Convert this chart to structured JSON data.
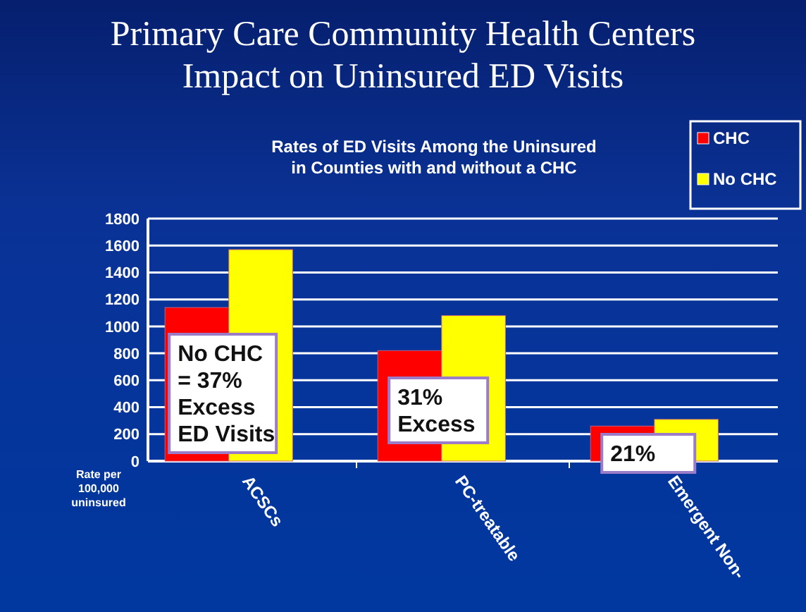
{
  "chart_data": {
    "type": "bar",
    "title": "Primary Care Community Health Centers\nImpact on Uninsured ED Visits",
    "subtitle": "Rates of ED Visits Among the Uninsured\nin Counties with and without a CHC",
    "ylabel": "Rate per 100,000 uninsured",
    "categories": [
      "ACSCs",
      "PC-treatable",
      "Emergent Non-"
    ],
    "series": [
      {
        "name": "CHC",
        "color": "#ff0000",
        "values": [
          1140,
          820,
          260
        ]
      },
      {
        "name": "No CHC",
        "color": "#ffff00",
        "values": [
          1570,
          1080,
          310
        ]
      }
    ],
    "ylim": [
      0,
      1800
    ],
    "yticks": [
      0,
      200,
      400,
      600,
      800,
      1000,
      1200,
      1400,
      1600,
      1800
    ],
    "grid": "y",
    "legend": "top right",
    "annotations": [
      "No CHC = 37% Excess ED Visits",
      "31% Excess",
      "21%"
    ]
  }
}
